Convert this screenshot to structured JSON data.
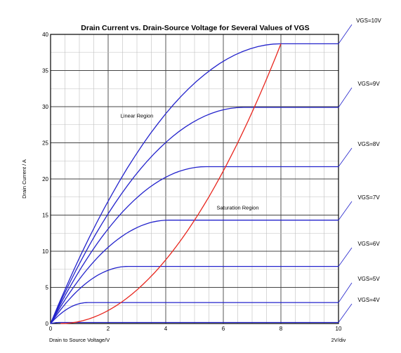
{
  "chart_data": {
    "type": "line",
    "title": "Drain Current vs. Drain-Source Voltage for Several Values of VGS",
    "xlabel": "Drain to Source Voltage/V",
    "ylabel": "Drain Current / A",
    "scale_note": "2V/div",
    "xlim": [
      0,
      10
    ],
    "ylim": [
      0,
      40
    ],
    "x_ticks": [
      0,
      2,
      4,
      6,
      8,
      10
    ],
    "y_ticks": [
      0,
      5,
      10,
      15,
      20,
      25,
      30,
      35,
      40
    ],
    "grid": true,
    "annotations": [
      {
        "text": "Linear Region",
        "x": 3.0,
        "y": 28.5
      },
      {
        "text": "Saturation Region",
        "x": 6.5,
        "y": 15.8
      }
    ],
    "series": [
      {
        "name": "VGS=4V",
        "saturation_vds": 0.35,
        "saturation_current": 0.15,
        "x": [
          0,
          0.35,
          10
        ],
        "y": [
          0,
          0.15,
          0.15
        ]
      },
      {
        "name": "VGS=5V",
        "saturation_vds": 1.3,
        "saturation_current": 2.9,
        "x": [
          0,
          1.3,
          10
        ],
        "y": [
          0,
          2.9,
          2.9
        ]
      },
      {
        "name": "VGS=6V",
        "saturation_vds": 2.7,
        "saturation_current": 7.9,
        "x": [
          0,
          2.7,
          10
        ],
        "y": [
          0,
          7.9,
          7.9
        ]
      },
      {
        "name": "VGS=7V",
        "saturation_vds": 4.1,
        "saturation_current": 14.3,
        "x": [
          0,
          4.1,
          10
        ],
        "y": [
          0,
          14.3,
          14.3
        ]
      },
      {
        "name": "VGS=8V",
        "saturation_vds": 5.4,
        "saturation_current": 21.7,
        "x": [
          0,
          5.4,
          10
        ],
        "y": [
          0,
          21.7,
          21.7
        ]
      },
      {
        "name": "VGS=9V",
        "saturation_vds": 6.7,
        "saturation_current": 29.9,
        "x": [
          0,
          6.7,
          10
        ],
        "y": [
          0,
          29.9,
          29.9
        ]
      },
      {
        "name": "VGS=10V",
        "saturation_vds": 8.0,
        "saturation_current": 38.7,
        "x": [
          0,
          8.0,
          10
        ],
        "y": [
          0,
          38.7,
          38.7
        ]
      }
    ],
    "boundary_curve": {
      "x": [
        0.35,
        1.3,
        2.7,
        4.1,
        5.4,
        6.7,
        8.0
      ],
      "y": [
        0.15,
        2.9,
        7.9,
        14.3,
        21.7,
        29.9,
        38.7
      ]
    },
    "colors": {
      "series": "#2323cc",
      "boundary": "#e8261e",
      "grid_major": "#444444",
      "grid_minor": "#bfbfbf",
      "axis": "#000000"
    }
  }
}
